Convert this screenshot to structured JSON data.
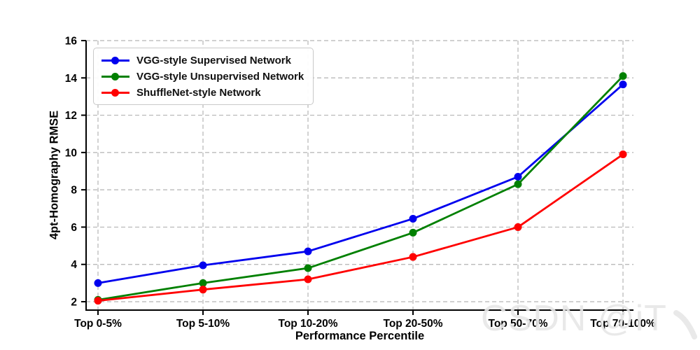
{
  "figure": {
    "background": "#ffffff"
  },
  "watermark": {
    "text": "CSDN @iT",
    "mark": "、",
    "color": "#e7e7e7"
  },
  "chart_data": {
    "type": "line",
    "title": "",
    "xlabel": "Performance Percentile",
    "ylabel": "4pt-Homography RMSE",
    "categories": [
      "Top 0-5%",
      "Top 5-10%",
      "Top 10-20%",
      "Top 20-50%",
      "Top 50-70%",
      "Top 70-100%"
    ],
    "series": [
      {
        "name": "VGG-style Supervised Network",
        "color": "#0000ee",
        "values": [
          3.0,
          3.95,
          4.7,
          6.45,
          8.7,
          13.65
        ]
      },
      {
        "name": "VGG-style Unsupervised Network",
        "color": "#008000",
        "values": [
          2.1,
          3.0,
          3.8,
          5.7,
          8.3,
          14.1
        ]
      },
      {
        "name": "ShuffleNet-style Network",
        "color": "#ff0000",
        "values": [
          2.05,
          2.65,
          3.2,
          4.4,
          6.0,
          9.9
        ]
      }
    ],
    "yticks": [
      2,
      4,
      6,
      8,
      10,
      12,
      14,
      16
    ],
    "ylim": [
      1.55,
      16
    ],
    "grid": true,
    "grid_style": "dashed",
    "grid_color": "#b3b3b3",
    "legend_position": "upper-left",
    "marker": "circle"
  }
}
